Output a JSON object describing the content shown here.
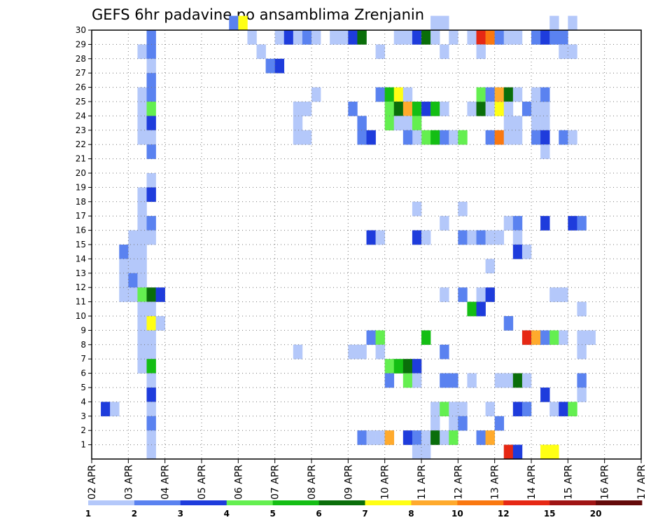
{
  "chart_data": {
    "type": "heatmap",
    "title": "GEFS 6hr padavine po ansamblima Zrenjanin",
    "xlabel": "",
    "ylabel": "",
    "ylim": [
      0,
      30
    ],
    "y_ticks": [
      "1",
      "2",
      "3",
      "4",
      "5",
      "6",
      "7",
      "8",
      "9",
      "10",
      "11",
      "12",
      "13",
      "14",
      "15",
      "16",
      "17",
      "18",
      "19",
      "20",
      "21",
      "22",
      "23",
      "24",
      "25",
      "26",
      "27",
      "28",
      "29",
      "30"
    ],
    "x_ticks": [
      "02 APR",
      "03 APR",
      "04 APR",
      "05 APR",
      "06 APR",
      "07 APR",
      "08 APR",
      "09 APR",
      "10 APR",
      "11 APR",
      "12 APR",
      "13 APR",
      "14 APR",
      "15 APR",
      "16 APR",
      "17 APR"
    ],
    "legend": {
      "colors": [
        "#b4c8fa",
        "#5a82f0",
        "#1e3cdc",
        "#64ef50",
        "#14be14",
        "#0a6e0a",
        "#ffff14",
        "#ffaa2d",
        "#fa7810",
        "#e62814",
        "#a01414",
        "#640a0a"
      ],
      "labels": [
        "1",
        "2",
        "3",
        "4",
        "5",
        "6",
        "7",
        "8",
        "10",
        "12",
        "15",
        "20"
      ]
    },
    "cells": [
      [
        30,
        12,
        2
      ],
      [
        30,
        13,
        7
      ],
      [
        29,
        3,
        2
      ],
      [
        28,
        2,
        1
      ],
      [
        28,
        3,
        2
      ],
      [
        27,
        3,
        1
      ],
      [
        26,
        3,
        2
      ],
      [
        25,
        2,
        1
      ],
      [
        25,
        3,
        2
      ],
      [
        24,
        2,
        1
      ],
      [
        24,
        3,
        4
      ],
      [
        23,
        2,
        1
      ],
      [
        23,
        3,
        3
      ],
      [
        22,
        2,
        1
      ],
      [
        22,
        3,
        1
      ],
      [
        21,
        3,
        2
      ],
      [
        19,
        3,
        1
      ],
      [
        18,
        2,
        1
      ],
      [
        18,
        3,
        3
      ],
      [
        17,
        2,
        1
      ],
      [
        16,
        2,
        1
      ],
      [
        16,
        3,
        2
      ],
      [
        15,
        1,
        1
      ],
      [
        15,
        2,
        1
      ],
      [
        15,
        3,
        1
      ],
      [
        14,
        0,
        2
      ],
      [
        14,
        1,
        1
      ],
      [
        14,
        2,
        1
      ],
      [
        13,
        0,
        1
      ],
      [
        13,
        1,
        1
      ],
      [
        13,
        2,
        1
      ],
      [
        12,
        0,
        1
      ],
      [
        12,
        1,
        2
      ],
      [
        12,
        2,
        1
      ],
      [
        11,
        0,
        1
      ],
      [
        11,
        1,
        1
      ],
      [
        11,
        2,
        4
      ],
      [
        11,
        3,
        6
      ],
      [
        11,
        4,
        3
      ],
      [
        10,
        2,
        1
      ],
      [
        10,
        3,
        1
      ],
      [
        9,
        2,
        1
      ],
      [
        9,
        3,
        7
      ],
      [
        9,
        4,
        1
      ],
      [
        8,
        2,
        1
      ],
      [
        8,
        3,
        1
      ],
      [
        7,
        2,
        1
      ],
      [
        7,
        3,
        1
      ],
      [
        6,
        2,
        1
      ],
      [
        6,
        3,
        5
      ],
      [
        5,
        3,
        1
      ],
      [
        4,
        3,
        3
      ],
      [
        3,
        -2,
        3
      ],
      [
        3,
        -1,
        1
      ],
      [
        3,
        3,
        1
      ],
      [
        2,
        3,
        2
      ],
      [
        1,
        3,
        1
      ],
      [
        0,
        3,
        1
      ],
      [
        29,
        14,
        1
      ],
      [
        28,
        15,
        1
      ],
      [
        27,
        16,
        2
      ],
      [
        27,
        17,
        3
      ],
      [
        29,
        17,
        1
      ],
      [
        29,
        18,
        3
      ],
      [
        29,
        19,
        1
      ],
      [
        29,
        20,
        2
      ],
      [
        29,
        21,
        1
      ],
      [
        25,
        21,
        1
      ],
      [
        24,
        19,
        1
      ],
      [
        24,
        20,
        1
      ],
      [
        23,
        19,
        1
      ],
      [
        22,
        19,
        1
      ],
      [
        22,
        20,
        1
      ],
      [
        24,
        25,
        2
      ],
      [
        23,
        26,
        2
      ],
      [
        22,
        26,
        2
      ],
      [
        22,
        27,
        3
      ],
      [
        29,
        23,
        1
      ],
      [
        29,
        24,
        1
      ],
      [
        29,
        25,
        3
      ],
      [
        29,
        26,
        6
      ],
      [
        28,
        28,
        1
      ],
      [
        25,
        28,
        2
      ],
      [
        25,
        29,
        5
      ],
      [
        25,
        30,
        7
      ],
      [
        25,
        31,
        1
      ],
      [
        24,
        29,
        4
      ],
      [
        24,
        30,
        6
      ],
      [
        24,
        31,
        8
      ],
      [
        24,
        32,
        5
      ],
      [
        24,
        33,
        3
      ],
      [
        24,
        34,
        5
      ],
      [
        24,
        35,
        1
      ],
      [
        23,
        29,
        4
      ],
      [
        23,
        30,
        1
      ],
      [
        23,
        31,
        1
      ],
      [
        23,
        32,
        4
      ],
      [
        22,
        33,
        4
      ],
      [
        22,
        34,
        5
      ],
      [
        22,
        35,
        2
      ],
      [
        22,
        32,
        1
      ],
      [
        22,
        31,
        2
      ],
      [
        22,
        36,
        1
      ],
      [
        22,
        37,
        4
      ],
      [
        24,
        38,
        1
      ],
      [
        24,
        39,
        6
      ],
      [
        25,
        39,
        4
      ],
      [
        25,
        40,
        2
      ],
      [
        24,
        40,
        1
      ],
      [
        24,
        41,
        7
      ],
      [
        25,
        41,
        8
      ],
      [
        25,
        42,
        6
      ],
      [
        25,
        43,
        1
      ],
      [
        24,
        42,
        1
      ],
      [
        23,
        42,
        1
      ],
      [
        23,
        43,
        1
      ],
      [
        29,
        30,
        1
      ],
      [
        29,
        31,
        1
      ],
      [
        29,
        32,
        3
      ],
      [
        29,
        33,
        6
      ],
      [
        29,
        36,
        1
      ],
      [
        29,
        34,
        1
      ],
      [
        28,
        35,
        1
      ],
      [
        29,
        38,
        1
      ],
      [
        29,
        39,
        10
      ],
      [
        29,
        40,
        9
      ],
      [
        29,
        41,
        2
      ],
      [
        29,
        42,
        1
      ],
      [
        29,
        43,
        1
      ],
      [
        28,
        39,
        1
      ],
      [
        29,
        45,
        2
      ],
      [
        29,
        46,
        3
      ],
      [
        29,
        47,
        2
      ],
      [
        29,
        48,
        2
      ],
      [
        28,
        48,
        1
      ],
      [
        28,
        49,
        1
      ],
      [
        30,
        34,
        1
      ],
      [
        30,
        35,
        1
      ],
      [
        30,
        47,
        1
      ],
      [
        30,
        49,
        1
      ],
      [
        22,
        40,
        2
      ],
      [
        22,
        41,
        9
      ],
      [
        22,
        42,
        1
      ],
      [
        22,
        43,
        1
      ],
      [
        24,
        44,
        2
      ],
      [
        24,
        45,
        1
      ],
      [
        24,
        46,
        1
      ],
      [
        23,
        45,
        1
      ],
      [
        23,
        46,
        1
      ],
      [
        25,
        45,
        1
      ],
      [
        25,
        46,
        2
      ],
      [
        22,
        45,
        2
      ],
      [
        22,
        46,
        3
      ],
      [
        22,
        48,
        2
      ],
      [
        22,
        49,
        1
      ],
      [
        21,
        46,
        1
      ],
      [
        17,
        32,
        1
      ],
      [
        17,
        37,
        1
      ],
      [
        16,
        35,
        1
      ],
      [
        16,
        42,
        1
      ],
      [
        16,
        43,
        2
      ],
      [
        16,
        46,
        3
      ],
      [
        16,
        49,
        3
      ],
      [
        16,
        50,
        2
      ],
      [
        15,
        27,
        3
      ],
      [
        15,
        28,
        1
      ],
      [
        15,
        32,
        3
      ],
      [
        15,
        33,
        1
      ],
      [
        15,
        37,
        2
      ],
      [
        15,
        38,
        1
      ],
      [
        15,
        39,
        2
      ],
      [
        15,
        40,
        1
      ],
      [
        15,
        41,
        1
      ],
      [
        15,
        43,
        1
      ],
      [
        14,
        43,
        3
      ],
      [
        14,
        44,
        1
      ],
      [
        13,
        40,
        1
      ],
      [
        11,
        35,
        1
      ],
      [
        11,
        37,
        2
      ],
      [
        11,
        39,
        1
      ],
      [
        11,
        40,
        3
      ],
      [
        11,
        47,
        1
      ],
      [
        11,
        48,
        1
      ],
      [
        10,
        38,
        5
      ],
      [
        10,
        39,
        3
      ],
      [
        10,
        50,
        1
      ],
      [
        9,
        42,
        2
      ],
      [
        8,
        27,
        2
      ],
      [
        8,
        28,
        4
      ],
      [
        8,
        33,
        5
      ],
      [
        8,
        44,
        10
      ],
      [
        8,
        45,
        8
      ],
      [
        8,
        46,
        2
      ],
      [
        8,
        47,
        4
      ],
      [
        8,
        48,
        1
      ],
      [
        8,
        50,
        1
      ],
      [
        8,
        51,
        1
      ],
      [
        7,
        19,
        1
      ],
      [
        7,
        25,
        1
      ],
      [
        7,
        26,
        1
      ],
      [
        7,
        28,
        1
      ],
      [
        7,
        35,
        2
      ],
      [
        7,
        50,
        1
      ],
      [
        6,
        29,
        4
      ],
      [
        6,
        30,
        5
      ],
      [
        6,
        31,
        6
      ],
      [
        6,
        32,
        3
      ],
      [
        5,
        29,
        2
      ],
      [
        5,
        31,
        4
      ],
      [
        5,
        32,
        1
      ],
      [
        5,
        35,
        2
      ],
      [
        5,
        36,
        2
      ],
      [
        5,
        38,
        1
      ],
      [
        5,
        41,
        1
      ],
      [
        5,
        42,
        1
      ],
      [
        5,
        43,
        6
      ],
      [
        5,
        44,
        1
      ],
      [
        5,
        50,
        2
      ],
      [
        4,
        46,
        3
      ],
      [
        4,
        50,
        1
      ],
      [
        3,
        34,
        1
      ],
      [
        3,
        35,
        4
      ],
      [
        3,
        36,
        1
      ],
      [
        3,
        37,
        1
      ],
      [
        3,
        40,
        1
      ],
      [
        3,
        43,
        3
      ],
      [
        3,
        44,
        2
      ],
      [
        3,
        47,
        1
      ],
      [
        3,
        48,
        3
      ],
      [
        3,
        49,
        4
      ],
      [
        2,
        34,
        1
      ],
      [
        2,
        36,
        1
      ],
      [
        2,
        37,
        2
      ],
      [
        2,
        41,
        2
      ],
      [
        1,
        26,
        2
      ],
      [
        1,
        27,
        1
      ],
      [
        1,
        28,
        1
      ],
      [
        1,
        29,
        8
      ],
      [
        1,
        31,
        3
      ],
      [
        1,
        32,
        2
      ],
      [
        1,
        33,
        1
      ],
      [
        1,
        34,
        6
      ],
      [
        1,
        35,
        1
      ],
      [
        1,
        36,
        4
      ],
      [
        1,
        39,
        2
      ],
      [
        1,
        40,
        8
      ],
      [
        0,
        32,
        1
      ],
      [
        0,
        33,
        1
      ],
      [
        0,
        42,
        10
      ],
      [
        0,
        43,
        3
      ],
      [
        0,
        46,
        7
      ],
      [
        0,
        47,
        7
      ]
    ]
  }
}
